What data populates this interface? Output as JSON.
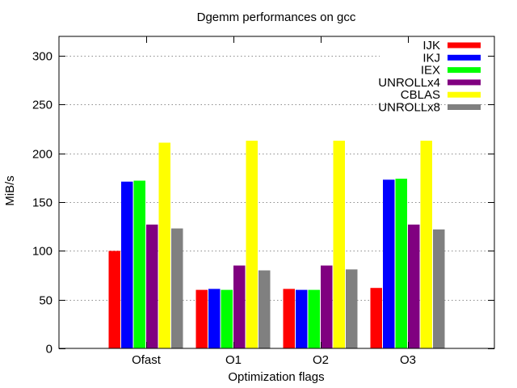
{
  "chart_data": {
    "type": "bar",
    "title": "Dgemm performances on gcc",
    "xlabel": "Optimization flags",
    "ylabel": "MiB/s",
    "ylim": [
      0,
      320
    ],
    "yticks": [
      0,
      50,
      100,
      150,
      200,
      250,
      300
    ],
    "grid": true,
    "legend_position": "top-right",
    "categories": [
      "Ofast",
      "O1",
      "O2",
      "O3"
    ],
    "series": [
      {
        "name": "IJK",
        "color": "#ff0000",
        "values": [
          100,
          60,
          61,
          62
        ]
      },
      {
        "name": "IKJ",
        "color": "#0000ff",
        "values": [
          171,
          61,
          60,
          173
        ]
      },
      {
        "name": "IEX",
        "color": "#00ff00",
        "values": [
          172,
          60,
          60,
          174
        ]
      },
      {
        "name": "UNROLLx4",
        "color": "#800080",
        "values": [
          127,
          85,
          85,
          127
        ]
      },
      {
        "name": "CBLAS",
        "color": "#ffff00",
        "values": [
          211,
          213,
          213,
          213
        ]
      },
      {
        "name": "UNROLLx8",
        "color": "#808080",
        "values": [
          123,
          80,
          81,
          122
        ]
      }
    ]
  }
}
